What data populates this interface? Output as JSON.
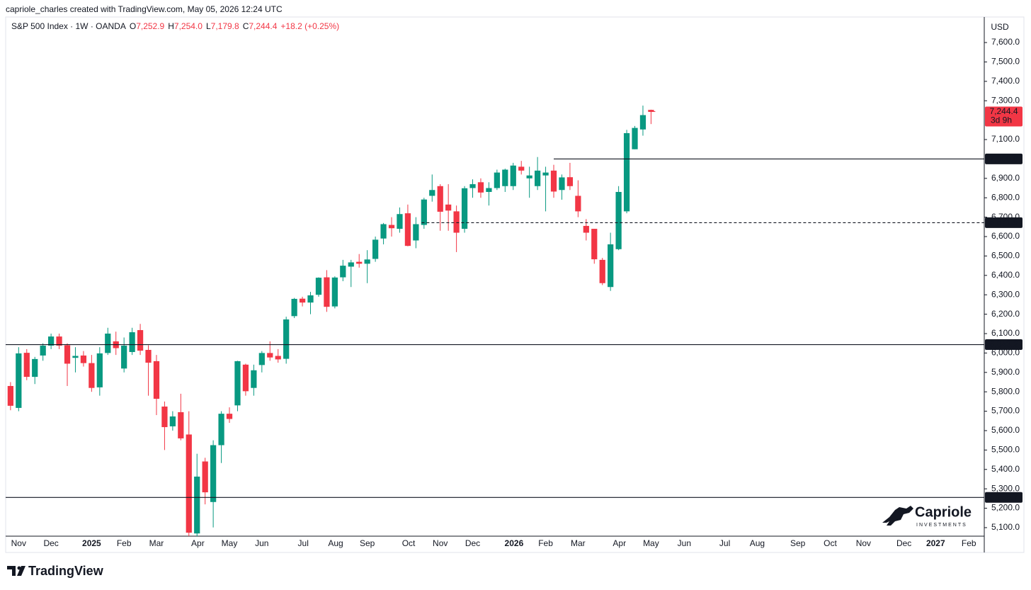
{
  "header": {
    "caption": "capriole_charles created with TradingView.com, May 05, 2026 12:24 UTC"
  },
  "legend": {
    "symbol": "S&P 500 Index · 1W · OANDA",
    "ohlc": [
      {
        "key": "O",
        "value": "7,252.9"
      },
      {
        "key": "H",
        "value": "7,254.0"
      },
      {
        "key": "L",
        "value": "7,179.8"
      },
      {
        "key": "C",
        "value": "7,244.4"
      }
    ],
    "change": "+18.2 (+0.25%)"
  },
  "chart_data": {
    "type": "candlestick",
    "currency": "USD",
    "up_color": "#089981",
    "down_color": "#f23645",
    "x": [
      0,
      1,
      2,
      3,
      4,
      5,
      6,
      7,
      8,
      9,
      10,
      11,
      12,
      13,
      14,
      15,
      16,
      17,
      18,
      19,
      20,
      21,
      22,
      23,
      24,
      25,
      26,
      27,
      28,
      29,
      30,
      31,
      32,
      33,
      34,
      35,
      36,
      37,
      38,
      39,
      40,
      41,
      42,
      43,
      44,
      45,
      46,
      47,
      48,
      49,
      50,
      51,
      52,
      53,
      54,
      55,
      56,
      57,
      58,
      59,
      60,
      61,
      62,
      63,
      64,
      65,
      66,
      67,
      68,
      69,
      70,
      71,
      72,
      73,
      74,
      75,
      76,
      77,
      78,
      79
    ],
    "open": [
      5830,
      5717,
      6001,
      5877,
      5987,
      6038,
      6085,
      6040,
      5975,
      5987,
      5948,
      5823,
      6000,
      6060,
      5920,
      6005,
      6118,
      6016,
      5958,
      5724,
      5622,
      5695,
      5580,
      5070,
      5441,
      5232,
      5525,
      5687,
      5730,
      5940,
      5820,
      5938,
      6000,
      5985,
      5970,
      6190,
      6280,
      6260,
      6300,
      6390,
      6240,
      6390,
      6445,
      6470,
      6460,
      6485,
      6590,
      6660,
      6640,
      6720,
      6580,
      6660,
      6810,
      6860,
      6765,
      6730,
      6640,
      6850,
      6880,
      6830,
      6850,
      6860,
      6860,
      6960,
      6900,
      6860,
      6915,
      6940,
      6840,
      6906,
      6810,
      6655,
      6640,
      6480,
      6340,
      6535,
      6730,
      7050,
      7152,
      7252.9
    ],
    "high": [
      5850,
      6030,
      6020,
      5980,
      6050,
      6100,
      6100,
      6050,
      6030,
      6010,
      5990,
      6030,
      6130,
      6110,
      6080,
      6130,
      6150,
      6040,
      5990,
      5750,
      5700,
      5790,
      5700,
      5481,
      5460,
      5550,
      5700,
      5720,
      5960,
      5945,
      5940,
      6010,
      6060,
      6020,
      6187,
      6284,
      6290,
      6315,
      6390,
      6427,
      6395,
      6480,
      6480,
      6510,
      6530,
      6600,
      6670,
      6700,
      6750,
      6765,
      6700,
      6800,
      6920,
      6870,
      6870,
      6760,
      6860,
      6895,
      6900,
      6880,
      6945,
      6950,
      6980,
      6990,
      6960,
      7010,
      6960,
      6970,
      6920,
      6980,
      6890,
      6690,
      6640,
      6490,
      6620,
      6860,
      7150,
      7170,
      7275,
      7254.0
    ],
    "low": [
      5705,
      5700,
      5860,
      5840,
      5960,
      6020,
      6020,
      5830,
      5900,
      5930,
      5800,
      5780,
      5990,
      5990,
      5900,
      5990,
      5990,
      5780,
      5680,
      5500,
      5600,
      5550,
      5000,
      4835,
      5220,
      5101,
      5433,
      5640,
      5700,
      5780,
      5780,
      5900,
      5960,
      5950,
      5945,
      6180,
      6240,
      6200,
      6290,
      6212,
      6230,
      6370,
      6340,
      6440,
      6360,
      6470,
      6560,
      6600,
      6620,
      6550,
      6540,
      6640,
      6780,
      6630,
      6630,
      6520,
      6620,
      6800,
      6800,
      6760,
      6840,
      6830,
      6840,
      6920,
      6800,
      6840,
      6730,
      6800,
      6790,
      6840,
      6700,
      6580,
      6460,
      6350,
      6320,
      6530,
      6720,
      7050,
      7120,
      7179.8
    ],
    "close": [
      5728,
      5998,
      5877,
      5969,
      6038,
      6085,
      6038,
      5945,
      5985,
      5948,
      5820,
      5998,
      6100,
      6025,
      6038,
      6107,
      6012,
      5950,
      5764,
      5618,
      5673,
      5560,
      5074,
      5363,
      5282,
      5525,
      5687,
      5660,
      5958,
      5803,
      5911,
      6000,
      5977,
      5967,
      6173,
      6279,
      6260,
      6297,
      6388,
      6238,
      6389,
      6450,
      6467,
      6460,
      6482,
      6584,
      6664,
      6643,
      6716,
      6552,
      6664,
      6791,
      6840,
      6728,
      6734,
      6620,
      6849,
      6870,
      6827,
      6850,
      6930,
      6945,
      6966,
      6940,
      6915,
      6940,
      6930,
      6832,
      6905,
      6860,
      6730,
      6620,
      6483,
      6360,
      6560,
      6830,
      7133,
      7160,
      7226,
      7244.4
    ],
    "last_price_label": "7,244.4",
    "countdown": "3d 9h",
    "xlim": [
      -0.6,
      120.1
    ],
    "ylim": [
      5056,
      7717
    ],
    "xticks": [
      {
        "value": 1.0,
        "label": "Nov"
      },
      {
        "value": 5.0,
        "label": "Dec"
      },
      {
        "value": 10.0,
        "label": "2025"
      },
      {
        "value": 14.0,
        "label": "Feb"
      },
      {
        "value": 18.0,
        "label": "Mar"
      },
      {
        "value": 23.1,
        "label": "Apr"
      },
      {
        "value": 27.0,
        "label": "May"
      },
      {
        "value": 31.0,
        "label": "Jun"
      },
      {
        "value": 36.1,
        "label": "Jul"
      },
      {
        "value": 40.1,
        "label": "Aug"
      },
      {
        "value": 44.0,
        "label": "Sep"
      },
      {
        "value": 49.1,
        "label": "Oct"
      },
      {
        "value": 53.0,
        "label": "Nov"
      },
      {
        "value": 57.0,
        "label": "Dec"
      },
      {
        "value": 62.1,
        "label": "2026"
      },
      {
        "value": 66.0,
        "label": "Feb"
      },
      {
        "value": 70.0,
        "label": "Mar"
      },
      {
        "value": 75.1,
        "label": "Apr"
      },
      {
        "value": 79.0,
        "label": "May"
      },
      {
        "value": 83.1,
        "label": "Jun"
      },
      {
        "value": 88.1,
        "label": "Jul"
      },
      {
        "value": 92.1,
        "label": "Aug"
      },
      {
        "value": 97.1,
        "label": "Sep"
      },
      {
        "value": 101.1,
        "label": "Oct"
      },
      {
        "value": 105.2,
        "label": "Nov"
      },
      {
        "value": 110.2,
        "label": "Dec"
      },
      {
        "value": 114.1,
        "label": "2027"
      },
      {
        "value": 118.2,
        "label": "Feb"
      }
    ],
    "yticks": [
      {
        "value": 5100,
        "label": "5,100.0"
      },
      {
        "value": 5200,
        "label": "5,200.0"
      },
      {
        "value": 5300,
        "label": "5,300.0"
      },
      {
        "value": 5400,
        "label": "5,400.0"
      },
      {
        "value": 5500,
        "label": "5,500.0"
      },
      {
        "value": 5600,
        "label": "5,600.0"
      },
      {
        "value": 5700,
        "label": "5,700.0"
      },
      {
        "value": 5800,
        "label": "5,800.0"
      },
      {
        "value": 5900,
        "label": "5,900.0"
      },
      {
        "value": 6000,
        "label": "6,000.0"
      },
      {
        "value": 6100,
        "label": "6,100.0"
      },
      {
        "value": 6200,
        "label": "6,200.0"
      },
      {
        "value": 6300,
        "label": "6,300.0"
      },
      {
        "value": 6400,
        "label": "6,400.0"
      },
      {
        "value": 6500,
        "label": "6,500.0"
      },
      {
        "value": 6600,
        "label": "6,600.0"
      },
      {
        "value": 6700,
        "label": "6,700.0"
      },
      {
        "value": 6800,
        "label": "6,800.0"
      },
      {
        "value": 6900,
        "label": "6,900.0"
      },
      {
        "value": 7100,
        "label": "7,100.0"
      },
      {
        "value": 7300,
        "label": "7,300.0"
      },
      {
        "value": 7400,
        "label": "7,400.0"
      },
      {
        "value": 7500,
        "label": "7,500.0"
      },
      {
        "value": 7600,
        "label": "7,600.0"
      }
    ],
    "grid": false,
    "levels": [
      {
        "value": 7000,
        "label": "7,000.0",
        "start": 67,
        "dashed": false
      },
      {
        "value": 6671.5,
        "label": "6,671.5",
        "start": 50.7,
        "dashed": true
      },
      {
        "value": 6043.2,
        "label": "6,043.2",
        "start": -0.6,
        "dashed": false
      },
      {
        "value": 5255.7,
        "label": "5,255.7",
        "start": -0.6,
        "dashed": false
      }
    ]
  },
  "branding": {
    "watermark": "Capriole",
    "watermark_sub": "INVESTMENTS",
    "footer": "TradingView"
  }
}
